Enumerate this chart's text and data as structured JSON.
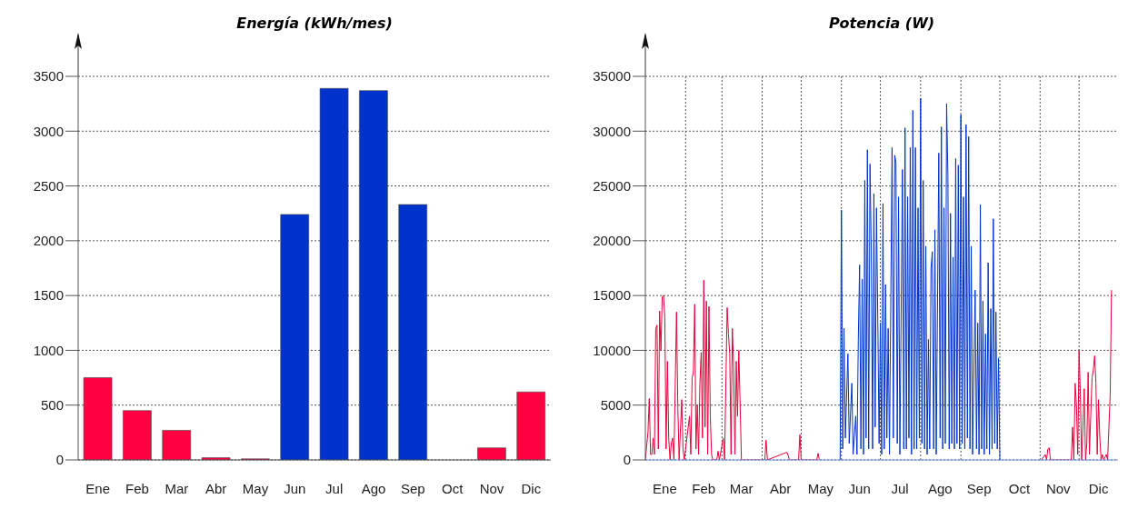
{
  "chart_data": [
    {
      "type": "bar",
      "title": "Energía (kWh/mes)",
      "categories": [
        "Ene",
        "Feb",
        "Mar",
        "Abr",
        "May",
        "Jun",
        "Jul",
        "Ago",
        "Sep",
        "Oct",
        "Nov",
        "Dic"
      ],
      "values": [
        750,
        450,
        270,
        20,
        10,
        2240,
        3390,
        3370,
        2330,
        0,
        110,
        620
      ],
      "colors": [
        "#ff0040",
        "#ff0040",
        "#ff0040",
        "#ff0040",
        "#ff0040",
        "#0033cc",
        "#0033cc",
        "#0033cc",
        "#0033cc",
        "#ff0040",
        "#ff0040",
        "#ff0040"
      ],
      "ylim": [
        0,
        3500
      ],
      "yticks": [
        0,
        500,
        1000,
        1500,
        2000,
        2500,
        3000,
        3500
      ],
      "grid": "y"
    },
    {
      "type": "line",
      "title": "Potencia (W)",
      "xlim": [
        "--01-01",
        "--12-31"
      ],
      "xticks": [
        {
          "value": "--01-16",
          "label": "Ene"
        },
        {
          "value": "--02-01",
          "label": null
        },
        {
          "value": "--02-15",
          "label": "Feb"
        },
        {
          "value": "--03-01",
          "label": null
        },
        {
          "value": "--03-16",
          "label": "Mar"
        },
        {
          "value": "--04-01",
          "label": null
        },
        {
          "value": "--04-15",
          "label": "Abr"
        },
        {
          "value": "--05-01",
          "label": null
        },
        {
          "value": "--05-16",
          "label": "May"
        },
        {
          "value": "--06-01",
          "label": null
        },
        {
          "value": "--06-15",
          "label": "Jun"
        },
        {
          "value": "--07-01",
          "label": null
        },
        {
          "value": "--07-16",
          "label": "Jul"
        },
        {
          "value": "--08-01",
          "label": null
        },
        {
          "value": "--08-16",
          "label": "Ago"
        },
        {
          "value": "--09-01",
          "label": null
        },
        {
          "value": "--09-15",
          "label": "Sep"
        },
        {
          "value": "--10-01",
          "label": null
        },
        {
          "value": "--10-16",
          "label": "Oct"
        },
        {
          "value": "--11-01",
          "label": null
        },
        {
          "value": "--11-15",
          "label": "Nov"
        },
        {
          "value": "--12-01",
          "label": null
        },
        {
          "value": "--12-16",
          "label": "Dic"
        }
      ],
      "ylim": [
        0,
        35000
      ],
      "yticks": [
        0,
        5000,
        10000,
        15000,
        20000,
        25000,
        30000,
        35000
      ],
      "grid": true,
      "series": [
        {
          "color": "#e8003c",
          "x": [
            "--01-01",
            "--01-03",
            "--01-04",
            "--01-05",
            "--01-06",
            "--01-07",
            "--01-08",
            "--01-09",
            "--01-10",
            "--01-11",
            "--01-12",
            "--01-13",
            "--01-14",
            "--01-15",
            "--01-16",
            "--01-17",
            "--01-18",
            "--01-19",
            "--01-20",
            "--01-21",
            "--01-22",
            "--01-23",
            "--01-25",
            "--01-26",
            "--01-27",
            "--01-29",
            "--01-30",
            "--01-31",
            "--02-04",
            "--02-05",
            "--02-06",
            "--02-07",
            "--02-08",
            "--02-09",
            "--02-10",
            "--02-11",
            "--02-12",
            "--02-13",
            "--02-14",
            "--02-15",
            "--02-16",
            "--02-17",
            "--02-18",
            "--02-19",
            "--02-20",
            "--02-21",
            "--02-22",
            "--02-25",
            "--02-26",
            "--02-27",
            "--03-02",
            "--03-03",
            "--03-05",
            "--03-06",
            "--03-07",
            "--03-08",
            "--03-09",
            "--03-10",
            "--03-11",
            "--03-12",
            "--03-13",
            "--03-14",
            "--03-16",
            "--04-03",
            "--04-04",
            "--04-05",
            "--04-20",
            "--04-21",
            "--04-22",
            "--04-29",
            "--04-30",
            "--05-01",
            "--05-13",
            "--05-14",
            "--05-15",
            "--07-19",
            "--11-02",
            "--11-05",
            "--11-06",
            "--11-07",
            "--11-08",
            "--11-09",
            "--11-25",
            "--11-26",
            "--11-27",
            "--11-28",
            "--11-29",
            "--11-30",
            "--12-01",
            "--12-02",
            "--12-03",
            "--12-04",
            "--12-05",
            "--12-06",
            "--12-07",
            "--12-08",
            "--12-09",
            "--12-10",
            "--12-11",
            "--12-12",
            "--12-13",
            "--12-14",
            "--12-15",
            "--12-16",
            "--12-17",
            "--12-18",
            "--12-19",
            "--12-20",
            "--12-22",
            "--12-23",
            "--12-25",
            "--12-26"
          ],
          "values": [
            0,
            2500,
            5600,
            500,
            500,
            2000,
            500,
            12000,
            12300,
            1000,
            13600,
            10000,
            14900,
            15000,
            13000,
            1000,
            9000,
            2000,
            0,
            1500,
            2000,
            0,
            13500,
            5000,
            0,
            5500,
            1000,
            0,
            4000,
            500,
            7500,
            8000,
            14200,
            1000,
            5000,
            500,
            7000,
            9800,
            2000,
            16400,
            3000,
            14500,
            500,
            14000,
            4000,
            500,
            0,
            0,
            800,
            0,
            2000,
            0,
            13900,
            11500,
            9700,
            500,
            12000,
            8500,
            500,
            9000,
            4000,
            10000,
            0,
            0,
            1800,
            0,
            700,
            400,
            0,
            0,
            2300,
            0,
            0,
            600,
            0,
            null,
            0,
            500,
            0,
            1000,
            1100,
            0,
            0,
            3000,
            0,
            7000,
            5000,
            500,
            10000,
            6000,
            0,
            3000,
            6500,
            0,
            1500,
            8000,
            500,
            4000,
            7500,
            8200,
            9500,
            7000,
            500,
            5500,
            2000,
            0,
            500,
            0,
            500,
            0,
            6000,
            15500
          ]
        },
        {
          "color": "#0033cc",
          "x": [
            "--05-31",
            "--06-01",
            "--06-02",
            "--06-03",
            "--06-04",
            "--06-06",
            "--06-07",
            "--06-09",
            "--06-10",
            "--06-12",
            "--06-13",
            "--06-14",
            "--06-15",
            "--06-16",
            "--06-17",
            "--06-18",
            "--06-19",
            "--06-20",
            "--06-21",
            "--06-22",
            "--06-23",
            "--06-24",
            "--06-25",
            "--06-26",
            "--06-27",
            "--06-28",
            "--06-29",
            "--06-30",
            "--07-01",
            "--07-02",
            "--07-03",
            "--07-04",
            "--07-05",
            "--07-06",
            "--07-07",
            "--07-08",
            "--07-10",
            "--07-11",
            "--07-12",
            "--07-13",
            "--07-14",
            "--07-15",
            "--07-16",
            "--07-18",
            "--07-19",
            "--07-20",
            "--07-21",
            "--07-22",
            "--07-23",
            "--07-24",
            "--07-25",
            "--07-26",
            "--07-27",
            "--07-28",
            "--07-29",
            "--07-30",
            "--07-31",
            "--08-01",
            "--08-02",
            "--08-03",
            "--08-04",
            "--08-05",
            "--08-06",
            "--08-07",
            "--08-08",
            "--08-09",
            "--08-10",
            "--08-11",
            "--08-12",
            "--08-13",
            "--08-15",
            "--08-16",
            "--08-17",
            "--08-18",
            "--08-19",
            "--08-20",
            "--08-21",
            "--08-22",
            "--08-23",
            "--08-24",
            "--08-25",
            "--08-26",
            "--08-27",
            "--08-28",
            "--08-29",
            "--08-30",
            "--08-31",
            "--09-01",
            "--09-02",
            "--09-03",
            "--09-04",
            "--09-05",
            "--09-06",
            "--09-07",
            "--09-08",
            "--09-09",
            "--09-10",
            "--09-12",
            "--09-13",
            "--09-14",
            "--09-15",
            "--09-16",
            "--09-17",
            "--09-18",
            "--09-19",
            "--09-20",
            "--09-21",
            "--09-22",
            "--09-23",
            "--09-24",
            "--09-25",
            "--09-26",
            "--09-27",
            "--09-28",
            "--09-29",
            "--09-30",
            "--10-01"
          ],
          "values": [
            0,
            22800,
            1000,
            12000,
            2000,
            9700,
            1500,
            7000,
            500,
            4000,
            500,
            11000,
            17800,
            1000,
            16500,
            500,
            25500,
            2000,
            28300,
            1000,
            27000,
            19000,
            1000,
            24300,
            3000,
            23000,
            13000,
            1500,
            12500,
            500,
            23400,
            1000,
            16000,
            2000,
            12000,
            500,
            28500,
            2000,
            27800,
            27200,
            1500,
            24000,
            500,
            26500,
            1000,
            30300,
            1000,
            24000,
            2000,
            28500,
            500,
            31900,
            1000,
            28500,
            1000,
            23000,
            2000,
            33000,
            1500,
            25500,
            1000,
            19500,
            500,
            11000,
            1000,
            17500,
            19000,
            1000,
            21000,
            500,
            28000,
            2000,
            30400,
            1000,
            23000,
            1500,
            32500,
            26000,
            1000,
            22500,
            1500,
            18500,
            1000,
            27500,
            1500,
            26900,
            1000,
            31500,
            1500,
            24000,
            1000,
            30600,
            2000,
            29500,
            1000,
            19500,
            500,
            15500,
            1000,
            12500,
            500,
            23300,
            1000,
            14500,
            500,
            11500,
            1000,
            18000,
            500,
            13800,
            1000,
            22000,
            1500,
            13500,
            1000,
            9300,
            0
          ]
        }
      ]
    }
  ]
}
